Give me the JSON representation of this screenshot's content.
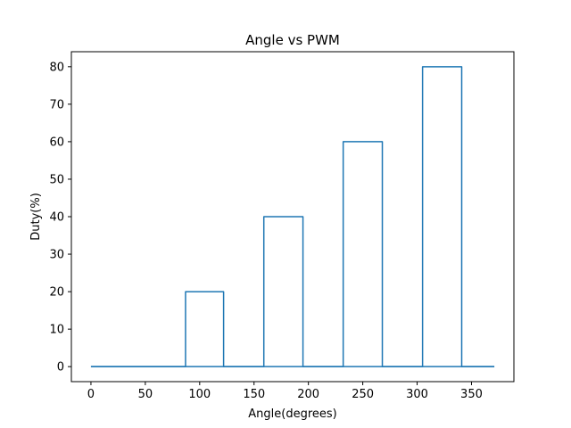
{
  "chart_data": {
    "type": "line",
    "title": "Angle vs PWM",
    "xlabel": "Angle(degrees)",
    "ylabel": "Duty(%)",
    "xlim": [
      -18,
      389
    ],
    "ylim": [
      -4,
      84
    ],
    "xticks": [
      0,
      50,
      100,
      150,
      200,
      250,
      300,
      350
    ],
    "yticks": [
      0,
      10,
      20,
      30,
      40,
      50,
      60,
      70,
      80
    ],
    "grid": false,
    "line_color": "#1f77b4",
    "series": [
      {
        "x": [
          0,
          87,
          87,
          122,
          122,
          159,
          159,
          195,
          195,
          232,
          232,
          268,
          268,
          305,
          305,
          341,
          341,
          371
        ],
        "y": [
          0,
          0,
          20,
          20,
          0,
          0,
          40,
          40,
          0,
          0,
          60,
          60,
          0,
          0,
          80,
          80,
          0,
          0
        ]
      },
      {
        "x": [
          0,
          371
        ],
        "y": [
          0,
          0
        ]
      }
    ]
  }
}
